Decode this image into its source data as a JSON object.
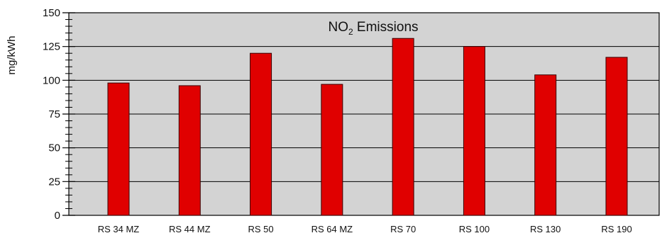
{
  "chart_data": {
    "type": "bar",
    "title": {
      "main": "NO",
      "subscript": "2",
      "rest": " Emissions"
    },
    "ylabel": "mg/kWh",
    "xlabel": "",
    "categories": [
      "RS 34 MZ",
      "RS 44 MZ",
      "RS 50",
      "RS 64 MZ",
      "RS 70",
      "RS 100",
      "RS 130",
      "RS 190"
    ],
    "values": [
      98,
      96,
      120,
      97,
      131,
      125,
      104,
      117
    ],
    "ylim": [
      0,
      150
    ],
    "yticks": [
      0,
      25,
      50,
      75,
      100,
      125,
      150
    ],
    "grid": true,
    "legend": "none",
    "colors": {
      "bar": "#e00000",
      "bar_edge": "#3a0000",
      "plot_bg": "#d3d3d3",
      "grid": "#000000"
    }
  }
}
